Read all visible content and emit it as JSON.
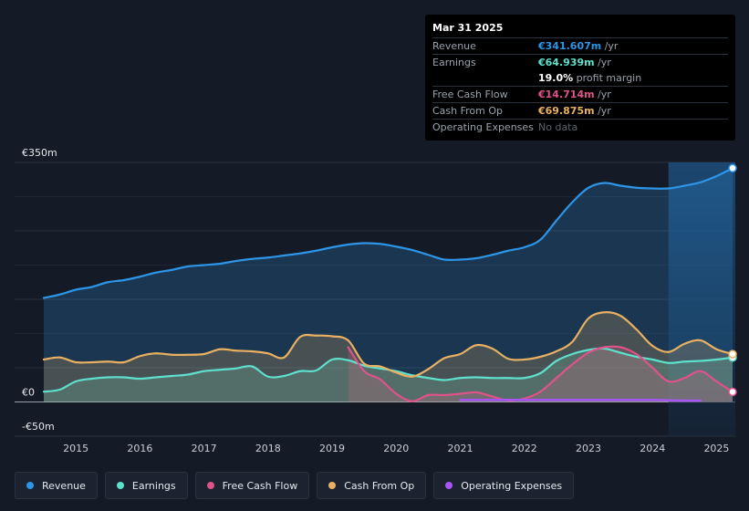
{
  "tooltip": {
    "date": "Mar 31 2025",
    "rows": [
      {
        "label": "Revenue",
        "value": "€341.607m",
        "unit": "/yr",
        "color": "#2d95e8"
      },
      {
        "label": "Earnings",
        "value": "€64.939m",
        "unit": "/yr",
        "color": "#5fe0cd"
      },
      {
        "label": "",
        "value": "19.0%",
        "unit": "profit margin",
        "color": "#ffffff"
      },
      {
        "label": "Free Cash Flow",
        "value": "€14.714m",
        "unit": "/yr",
        "color": "#e0528a"
      },
      {
        "label": "Cash From Op",
        "value": "€69.875m",
        "unit": "/yr",
        "color": "#e9b062"
      },
      {
        "label": "Operating Expenses",
        "value": "No data",
        "unit": "",
        "color": "#5d646e"
      }
    ]
  },
  "legend": [
    {
      "label": "Revenue",
      "color": "#2d95e8"
    },
    {
      "label": "Earnings",
      "color": "#5fe0cd"
    },
    {
      "label": "Free Cash Flow",
      "color": "#e0528a"
    },
    {
      "label": "Cash From Op",
      "color": "#e9b062"
    },
    {
      "label": "Operating Expenses",
      "color": "#a855f7"
    }
  ],
  "chart_data": {
    "type": "area",
    "title": "",
    "xlabel": "",
    "ylabel": "",
    "ylim": [
      -50,
      350
    ],
    "y_ticks": [
      {
        "value": 350,
        "label": "€350m"
      },
      {
        "value": 0,
        "label": "€0"
      },
      {
        "value": -50,
        "label": "-€50m"
      }
    ],
    "xlim": [
      2014.5,
      2025.25
    ],
    "x_ticks": [
      "2015",
      "2016",
      "2017",
      "2018",
      "2019",
      "2020",
      "2021",
      "2022",
      "2023",
      "2024",
      "2025"
    ],
    "x_tick_values": [
      2015,
      2016,
      2017,
      2018,
      2019,
      2020,
      2021,
      2022,
      2023,
      2024,
      2025
    ],
    "forecast_start": 2024.25,
    "series": [
      {
        "name": "Revenue",
        "color": "#2d95e8",
        "x": [
          2014.5,
          2014.75,
          2015.0,
          2015.25,
          2015.5,
          2015.75,
          2016.0,
          2016.25,
          2016.5,
          2016.75,
          2017.0,
          2017.25,
          2017.5,
          2017.75,
          2018.0,
          2018.25,
          2018.5,
          2018.75,
          2019.0,
          2019.25,
          2019.5,
          2019.75,
          2020.0,
          2020.25,
          2020.5,
          2020.75,
          2021.0,
          2021.25,
          2021.5,
          2021.75,
          2022.0,
          2022.25,
          2022.5,
          2022.75,
          2023.0,
          2023.25,
          2023.5,
          2023.75,
          2024.0,
          2024.25,
          2024.5,
          2024.75,
          2025.0,
          2025.25
        ],
        "values": [
          152,
          157,
          164,
          168,
          175,
          178,
          183,
          189,
          193,
          198,
          200,
          202,
          206,
          209,
          211,
          214,
          217,
          221,
          226,
          230,
          232,
          231,
          227,
          222,
          215,
          208,
          208,
          210,
          215,
          221,
          226,
          237,
          265,
          292,
          313,
          320,
          316,
          313,
          312,
          312,
          316,
          321,
          330,
          341.607
        ]
      },
      {
        "name": "Earnings",
        "color": "#5fe0cd",
        "x": [
          2014.5,
          2014.75,
          2015.0,
          2015.25,
          2015.5,
          2015.75,
          2016.0,
          2016.25,
          2016.5,
          2016.75,
          2017.0,
          2017.25,
          2017.5,
          2017.75,
          2018.0,
          2018.25,
          2018.5,
          2018.75,
          2019.0,
          2019.25,
          2019.5,
          2019.75,
          2020.0,
          2020.25,
          2020.5,
          2020.75,
          2021.0,
          2021.25,
          2021.5,
          2021.75,
          2022.0,
          2022.25,
          2022.5,
          2022.75,
          2023.0,
          2023.25,
          2023.5,
          2023.75,
          2024.0,
          2024.25,
          2024.5,
          2024.75,
          2025.0,
          2025.25
        ],
        "values": [
          15,
          18,
          30,
          34,
          36,
          36,
          34,
          36,
          38,
          40,
          45,
          47,
          49,
          52,
          37,
          38,
          45,
          46,
          62,
          61,
          53,
          49,
          45,
          39,
          35,
          32,
          35,
          36,
          35,
          35,
          35,
          42,
          60,
          70,
          76,
          78,
          72,
          66,
          62,
          57,
          59,
          60,
          62,
          64.939
        ]
      },
      {
        "name": "Free Cash Flow",
        "color": "#e0528a",
        "x": [
          2019.25,
          2019.5,
          2019.75,
          2020.0,
          2020.25,
          2020.5,
          2020.75,
          2021.0,
          2021.25,
          2021.5,
          2021.75,
          2022.0,
          2022.25,
          2022.5,
          2022.75,
          2023.0,
          2023.25,
          2023.5,
          2023.75,
          2024.0,
          2024.25,
          2024.5,
          2024.75,
          2025.0,
          2025.25
        ],
        "values": [
          80,
          45,
          33,
          12,
          1,
          10,
          10,
          12,
          14,
          8,
          2,
          5,
          15,
          35,
          55,
          72,
          80,
          80,
          70,
          50,
          30,
          35,
          45,
          30,
          14.714
        ]
      },
      {
        "name": "Cash From Op",
        "color": "#e9b062",
        "x": [
          2014.5,
          2014.75,
          2015.0,
          2015.25,
          2015.5,
          2015.75,
          2016.0,
          2016.25,
          2016.5,
          2016.75,
          2017.0,
          2017.25,
          2017.5,
          2017.75,
          2018.0,
          2018.25,
          2018.5,
          2018.75,
          2019.0,
          2019.25,
          2019.5,
          2019.75,
          2020.0,
          2020.25,
          2020.5,
          2020.75,
          2021.0,
          2021.25,
          2021.5,
          2021.75,
          2022.0,
          2022.25,
          2022.5,
          2022.75,
          2023.0,
          2023.25,
          2023.5,
          2023.75,
          2024.0,
          2024.25,
          2024.5,
          2024.75,
          2025.0,
          2025.25
        ],
        "values": [
          62,
          65,
          58,
          58,
          59,
          58,
          67,
          71,
          69,
          69,
          70,
          77,
          75,
          74,
          71,
          65,
          95,
          97,
          96,
          90,
          56,
          52,
          43,
          37,
          48,
          64,
          70,
          83,
          78,
          63,
          62,
          66,
          74,
          88,
          122,
          131,
          126,
          106,
          82,
          73,
          85,
          90,
          77,
          69.875
        ]
      },
      {
        "name": "Operating Expenses",
        "color": "#a855f7",
        "x": [
          2021.0,
          2021.5,
          2022.0,
          2022.5,
          2023.0,
          2023.5,
          2024.0,
          2024.5,
          2024.75
        ],
        "values": [
          3,
          3,
          3,
          3,
          3,
          3,
          3,
          2,
          2
        ]
      }
    ]
  }
}
